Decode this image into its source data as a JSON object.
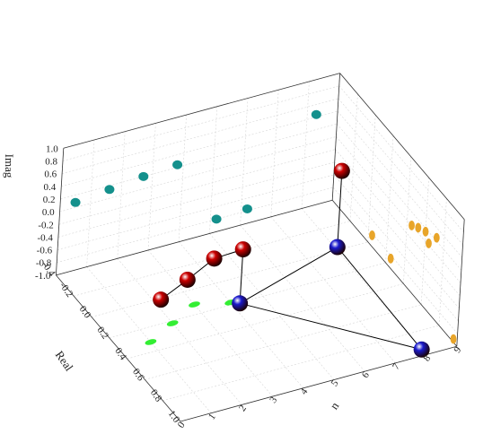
{
  "chart_data": {
    "type": "scatter",
    "projection": "3d",
    "title": "",
    "axes": {
      "n": {
        "label": "n",
        "range": [
          0,
          9
        ],
        "ticks": [
          0,
          1,
          2,
          3,
          4,
          5,
          6,
          7,
          8,
          9
        ]
      },
      "real": {
        "label": "Real",
        "range": [
          -0.4,
          1.0
        ],
        "ticks": [
          "-0.4",
          "-0.2",
          "0.0",
          "0.2",
          "0.4",
          "0.6",
          "0.8",
          "1.0"
        ]
      },
      "imag": {
        "label": "Imag",
        "range": [
          -1.0,
          1.0
        ],
        "ticks": [
          "-1.0",
          "-0.8",
          "-0.6",
          "-0.4",
          "-0.2",
          "0.0",
          "0.2",
          "0.4",
          "0.6",
          "0.8",
          "1.0"
        ]
      }
    },
    "grid": true,
    "series": [
      {
        "color": "#cc0000",
        "marker": "sphere",
        "style": "poles",
        "points": [
          {
            "n": 1,
            "real": 0.4,
            "imag": -0.2
          },
          {
            "n": 2,
            "real": 0.35,
            "imag": -0.1
          },
          {
            "n": 3,
            "real": 0.3,
            "imag": 0.02
          },
          {
            "n": 4,
            "real": 0.28,
            "imag": 0.0
          },
          {
            "n": 8,
            "real": 0.0,
            "imag": 0.25
          }
        ]
      },
      {
        "color": "#1a1acc",
        "marker": "sphere",
        "style": "baseline",
        "points": [
          {
            "n": 4,
            "real": 0.28,
            "imag": -0.85
          },
          {
            "n": 8,
            "real": 0.0,
            "imag": -0.95
          },
          {
            "n": 8,
            "real": 0.95,
            "imag": -1.0
          }
        ]
      },
      {
        "color": "#14908c",
        "marker": "ellipse",
        "style": "back-wall-projection",
        "points": [
          [
            0.5,
            0.08
          ],
          [
            1.6,
            0.14
          ],
          [
            2.7,
            0.2
          ],
          [
            3.8,
            0.24
          ],
          [
            8.3,
            0.44
          ],
          [
            5.2,
            -0.8
          ],
          [
            6.2,
            -0.77
          ]
        ]
      },
      {
        "color": "#e8a52a",
        "marker": "ellipse",
        "style": "side-wall-projection",
        "points": [
          [
            0.72,
            0.25
          ],
          [
            0.6,
            0.15
          ],
          [
            0.52,
            0.08
          ],
          [
            0.45,
            0.0
          ],
          [
            0.64,
            0.03
          ],
          [
            0.04,
            -0.83
          ],
          [
            0.25,
            -0.85
          ],
          [
            0.96,
            -0.95
          ]
        ]
      },
      {
        "color": "#33ee33",
        "marker": "ellipse",
        "style": "floor-projection",
        "points": [
          [
            1,
            0.32
          ],
          [
            2,
            0.22
          ],
          [
            3,
            0.12
          ],
          [
            4,
            0.18
          ],
          [
            8,
            0.0
          ]
        ]
      }
    ],
    "connections": [
      [
        [
          1,
          0.4,
          -0.2
        ],
        [
          2,
          0.35,
          -0.1
        ],
        [
          3,
          0.3,
          0.02
        ],
        [
          4,
          0.28,
          0.0
        ],
        [
          4,
          0.28,
          -0.85
        ],
        [
          8,
          0.95,
          -1.0
        ],
        [
          8,
          0.0,
          -0.95
        ],
        [
          8,
          0.0,
          0.25
        ]
      ],
      [
        [
          4,
          0.28,
          -0.85
        ],
        [
          8,
          0.0,
          -0.95
        ]
      ]
    ]
  }
}
